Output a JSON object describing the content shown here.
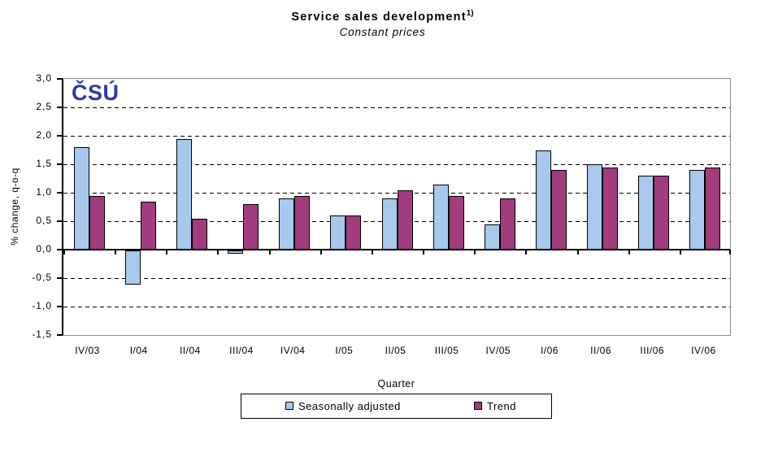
{
  "title": "Service sales development",
  "title_superscript": "1)",
  "subtitle": "Constant prices",
  "logo_text": "ČSÚ",
  "x_axis_title": "Quarter",
  "y_axis_title": "% change, q-o-q",
  "colors": {
    "seasonally_adjusted_bar": "#A8C9EE",
    "trend_bar": "#A13C7E",
    "logo_blue": "#2B3AA6",
    "plot_border": "#888888",
    "axis": "#000000"
  },
  "chart_data": {
    "type": "bar",
    "title": "Service sales development 1)",
    "subtitle": "Constant prices",
    "xlabel": "Quarter",
    "ylabel": "% change, q-o-q",
    "categories": [
      "IV/03",
      "I/04",
      "II/04",
      "III/04",
      "IV/04",
      "I/05",
      "II/05",
      "III/05",
      "IV/05",
      "I/06",
      "II/06",
      "III/06",
      "IV/06"
    ],
    "series": [
      {
        "name": "Seasonally adjusted",
        "color": "#A8C9EE",
        "values": [
          1.8,
          -0.6,
          1.95,
          -0.05,
          0.9,
          0.6,
          0.9,
          1.15,
          0.45,
          1.75,
          1.5,
          1.3,
          1.4
        ]
      },
      {
        "name": "Trend",
        "color": "#A13C7E",
        "values": [
          0.95,
          0.85,
          0.55,
          0.8,
          0.95,
          0.6,
          1.05,
          0.95,
          0.9,
          1.4,
          1.45,
          1.3,
          1.45
        ]
      }
    ],
    "ylim": [
      -1.5,
      3.0
    ],
    "ytick_step": 0.5,
    "ytick_labels": [
      "3,0",
      "2,5",
      "2,0",
      "1,5",
      "1,0",
      "0,5",
      "0,0",
      "-0,5",
      "-1,0",
      "-1,5"
    ],
    "grid": "horizontal-dashed",
    "legend_position": "bottom"
  }
}
